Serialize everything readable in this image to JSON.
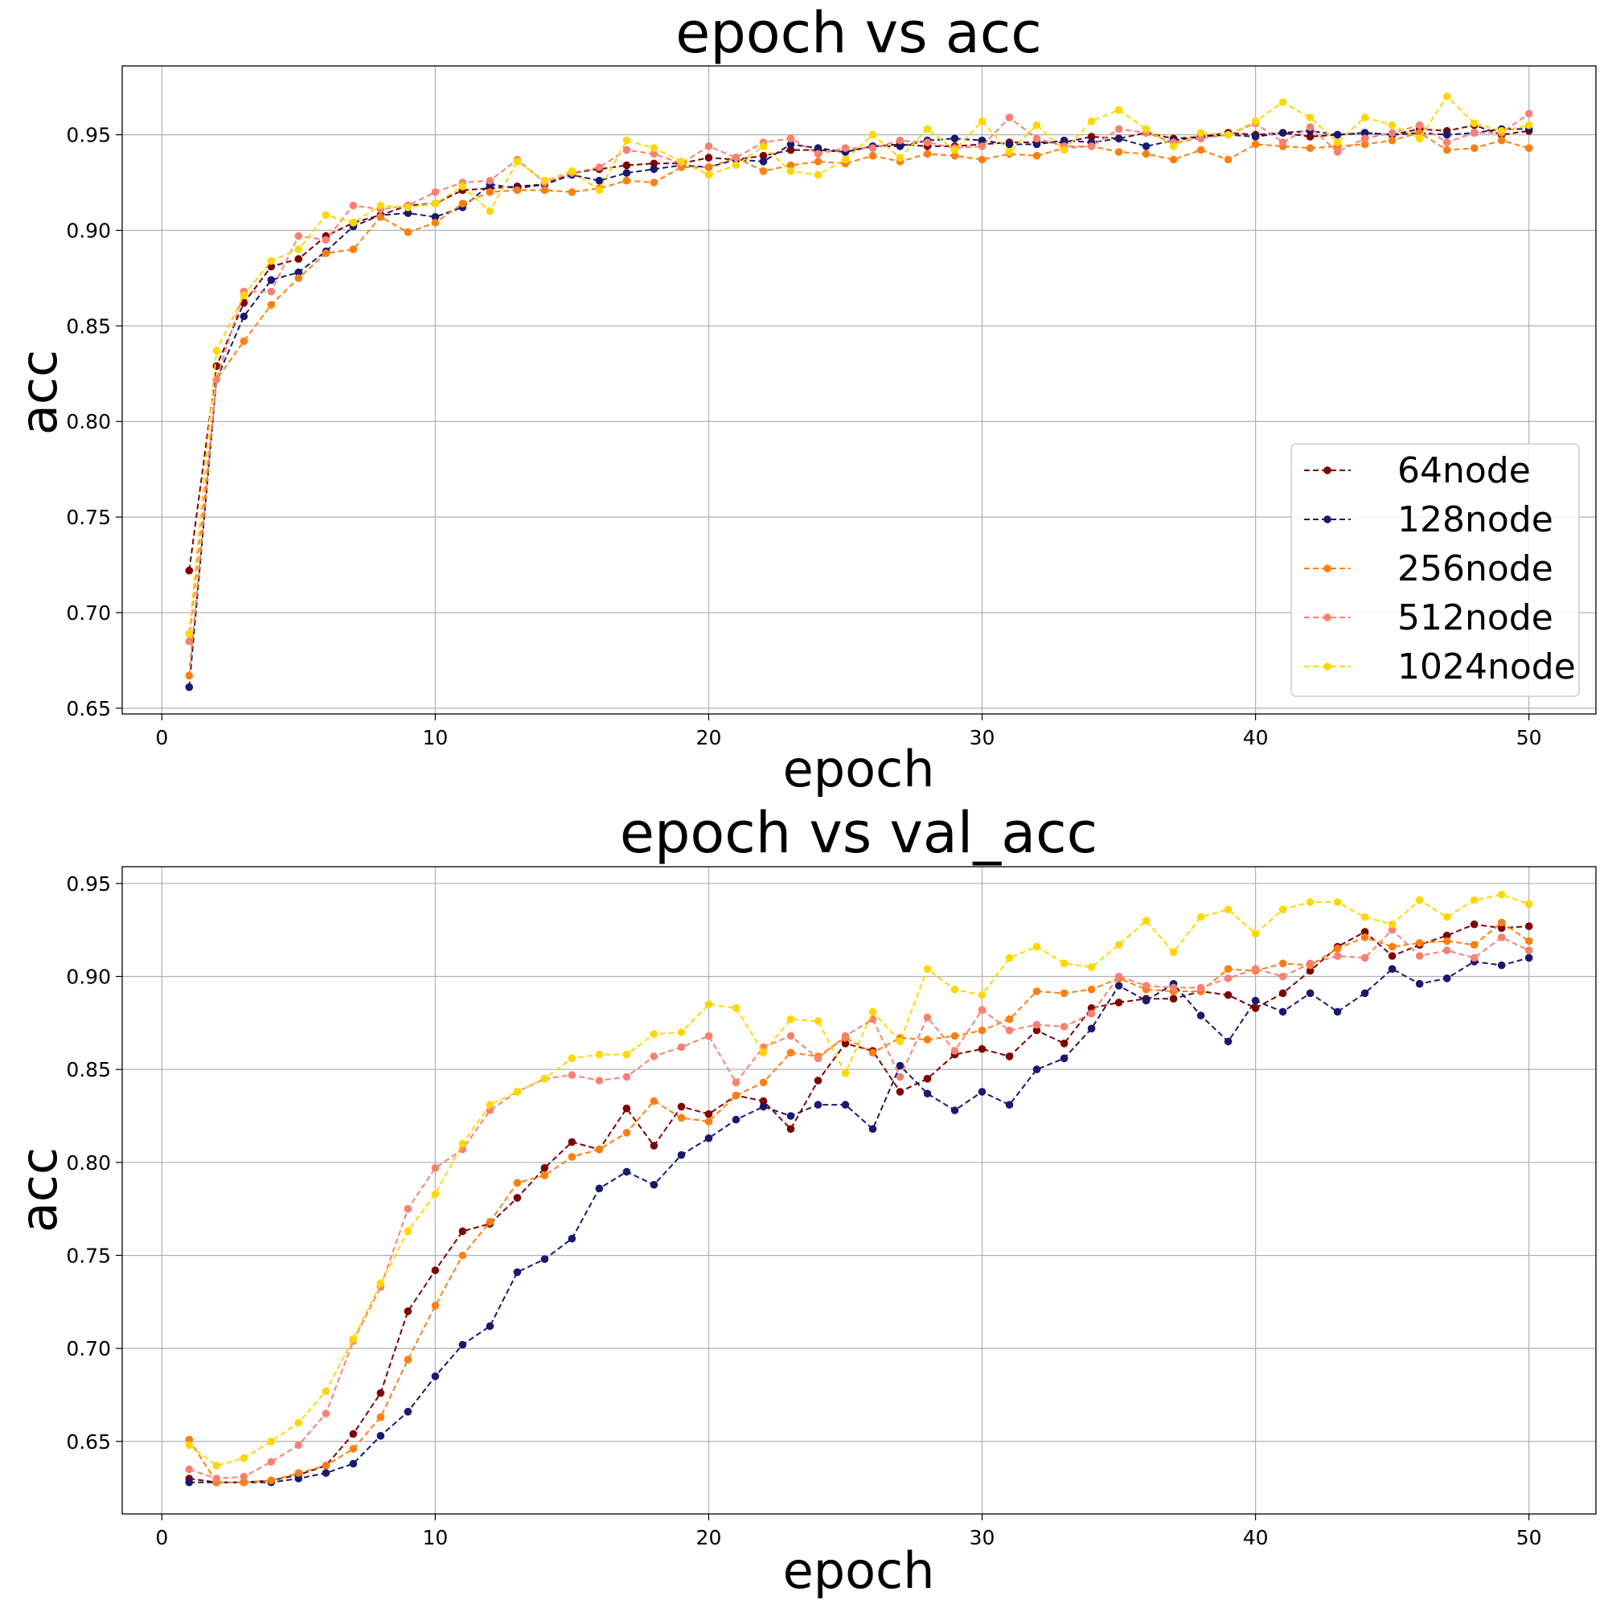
{
  "chart_data": [
    {
      "type": "line",
      "title": "epoch vs acc",
      "xlabel": "epoch",
      "ylabel": "acc",
      "xlim": [
        -1.45,
        52.45
      ],
      "ylim": [
        0.647,
        0.986
      ],
      "xticks": [
        0,
        10,
        20,
        30,
        40,
        50
      ],
      "xtick_labels": [
        "0",
        "10",
        "20",
        "30",
        "40",
        "50"
      ],
      "yticks": [
        0.65,
        0.7,
        0.75,
        0.8,
        0.85,
        0.9,
        0.95
      ],
      "ytick_labels": [
        "0.65",
        "0.70",
        "0.75",
        "0.80",
        "0.85",
        "0.90",
        "0.95"
      ],
      "grid": true,
      "legend": "lower-right",
      "x": [
        1,
        2,
        3,
        4,
        5,
        6,
        7,
        8,
        9,
        10,
        11,
        12,
        13,
        14,
        15,
        16,
        17,
        18,
        19,
        20,
        21,
        22,
        23,
        24,
        25,
        26,
        27,
        28,
        29,
        30,
        31,
        32,
        33,
        34,
        35,
        36,
        37,
        38,
        39,
        40,
        41,
        42,
        43,
        44,
        45,
        46,
        47,
        48,
        49,
        50
      ],
      "series": [
        {
          "name": "64node",
          "color": "#7f0000",
          "values": [
            0.722,
            0.829,
            0.862,
            0.881,
            0.885,
            0.897,
            0.904,
            0.908,
            0.913,
            0.914,
            0.921,
            0.922,
            0.923,
            0.924,
            0.93,
            0.932,
            0.934,
            0.935,
            0.935,
            0.938,
            0.937,
            0.939,
            0.942,
            0.942,
            0.941,
            0.944,
            0.945,
            0.944,
            0.944,
            0.945,
            0.946,
            0.946,
            0.946,
            0.949,
            0.948,
            0.951,
            0.948,
            0.949,
            0.951,
            0.95,
            0.951,
            0.949,
            0.95,
            0.951,
            0.95,
            0.953,
            0.952,
            0.955,
            0.95,
            0.952
          ]
        },
        {
          "name": "128node",
          "color": "#191970",
          "values": [
            0.661,
            0.822,
            0.855,
            0.874,
            0.878,
            0.889,
            0.902,
            0.908,
            0.909,
            0.907,
            0.912,
            0.924,
            0.922,
            0.924,
            0.929,
            0.926,
            0.93,
            0.932,
            0.934,
            0.933,
            0.937,
            0.936,
            0.945,
            0.943,
            0.941,
            0.944,
            0.944,
            0.947,
            0.948,
            0.947,
            0.945,
            0.945,
            0.947,
            0.946,
            0.948,
            0.944,
            0.947,
            0.949,
            0.95,
            0.949,
            0.951,
            0.952,
            0.95,
            0.951,
            0.95,
            0.951,
            0.95,
            0.951,
            0.953,
            0.953
          ]
        },
        {
          "name": "256node",
          "color": "#ff7f0e",
          "values": [
            0.667,
            0.822,
            0.842,
            0.861,
            0.875,
            0.888,
            0.89,
            0.907,
            0.899,
            0.904,
            0.914,
            0.92,
            0.921,
            0.921,
            0.92,
            0.922,
            0.926,
            0.925,
            0.933,
            0.933,
            0.938,
            0.931,
            0.934,
            0.936,
            0.935,
            0.939,
            0.936,
            0.94,
            0.939,
            0.937,
            0.94,
            0.939,
            0.943,
            0.944,
            0.941,
            0.94,
            0.937,
            0.942,
            0.937,
            0.945,
            0.944,
            0.943,
            0.944,
            0.945,
            0.947,
            0.951,
            0.942,
            0.943,
            0.947,
            0.943
          ]
        },
        {
          "name": "512node",
          "color": "#fa8072",
          "values": [
            0.685,
            0.822,
            0.868,
            0.868,
            0.897,
            0.895,
            0.913,
            0.911,
            0.913,
            0.92,
            0.925,
            0.926,
            0.937,
            0.925,
            0.93,
            0.933,
            0.942,
            0.94,
            0.935,
            0.944,
            0.938,
            0.946,
            0.948,
            0.94,
            0.943,
            0.943,
            0.947,
            0.946,
            0.943,
            0.944,
            0.959,
            0.948,
            0.944,
            0.944,
            0.953,
            0.951,
            0.946,
            0.948,
            0.95,
            0.956,
            0.946,
            0.954,
            0.941,
            0.948,
            0.951,
            0.955,
            0.946,
            0.951,
            0.951,
            0.961
          ]
        },
        {
          "name": "1024node",
          "color": "#ffd700",
          "values": [
            0.689,
            0.837,
            0.866,
            0.884,
            0.89,
            0.908,
            0.904,
            0.913,
            0.912,
            0.914,
            0.923,
            0.91,
            0.936,
            0.926,
            0.931,
            0.921,
            0.947,
            0.943,
            0.936,
            0.929,
            0.934,
            0.944,
            0.931,
            0.929,
            0.937,
            0.95,
            0.938,
            0.953,
            0.942,
            0.957,
            0.941,
            0.955,
            0.942,
            0.957,
            0.963,
            0.953,
            0.944,
            0.951,
            0.95,
            0.957,
            0.967,
            0.959,
            0.946,
            0.959,
            0.955,
            0.948,
            0.97,
            0.956,
            0.952,
            0.955
          ]
        }
      ]
    },
    {
      "type": "line",
      "title": "epoch vs val_acc",
      "xlabel": "epoch",
      "ylabel": "acc",
      "xlim": [
        -1.45,
        52.45
      ],
      "ylim": [
        0.611,
        0.959
      ],
      "xticks": [
        0,
        10,
        20,
        30,
        40,
        50
      ],
      "xtick_labels": [
        "0",
        "10",
        "20",
        "30",
        "40",
        "50"
      ],
      "yticks": [
        0.65,
        0.7,
        0.75,
        0.8,
        0.85,
        0.9,
        0.95
      ],
      "ytick_labels": [
        "0.65",
        "0.70",
        "0.75",
        "0.80",
        "0.85",
        "0.90",
        "0.95"
      ],
      "grid": true,
      "x": [
        1,
        2,
        3,
        4,
        5,
        6,
        7,
        8,
        9,
        10,
        11,
        12,
        13,
        14,
        15,
        16,
        17,
        18,
        19,
        20,
        21,
        22,
        23,
        24,
        25,
        26,
        27,
        28,
        29,
        30,
        31,
        32,
        33,
        34,
        35,
        36,
        37,
        38,
        39,
        40,
        41,
        42,
        43,
        44,
        45,
        46,
        47,
        48,
        49,
        50
      ],
      "series": [
        {
          "name": "64node",
          "color": "#7f0000",
          "values": [
            0.63,
            0.628,
            0.628,
            0.629,
            0.632,
            0.637,
            0.654,
            0.676,
            0.72,
            0.742,
            0.763,
            0.767,
            0.781,
            0.797,
            0.811,
            0.807,
            0.829,
            0.809,
            0.83,
            0.826,
            0.836,
            0.833,
            0.818,
            0.844,
            0.864,
            0.86,
            0.838,
            0.845,
            0.858,
            0.861,
            0.857,
            0.871,
            0.864,
            0.883,
            0.886,
            0.888,
            0.888,
            0.892,
            0.89,
            0.883,
            0.891,
            0.903,
            0.916,
            0.924,
            0.911,
            0.917,
            0.922,
            0.928,
            0.926,
            0.927
          ]
        },
        {
          "name": "128node",
          "color": "#191970",
          "values": [
            0.628,
            0.628,
            0.628,
            0.628,
            0.63,
            0.633,
            0.638,
            0.653,
            0.666,
            0.685,
            0.702,
            0.712,
            0.741,
            0.748,
            0.759,
            0.786,
            0.795,
            0.788,
            0.804,
            0.813,
            0.823,
            0.83,
            0.825,
            0.831,
            0.831,
            0.818,
            0.852,
            0.837,
            0.828,
            0.838,
            0.831,
            0.85,
            0.856,
            0.872,
            0.895,
            0.887,
            0.896,
            0.879,
            0.865,
            0.887,
            0.881,
            0.891,
            0.881,
            0.891,
            0.904,
            0.896,
            0.899,
            0.908,
            0.906,
            0.91
          ]
        },
        {
          "name": "256node",
          "color": "#ff7f0e",
          "values": [
            0.651,
            0.628,
            0.628,
            0.629,
            0.633,
            0.637,
            0.646,
            0.663,
            0.694,
            0.723,
            0.75,
            0.768,
            0.789,
            0.793,
            0.803,
            0.807,
            0.816,
            0.833,
            0.824,
            0.822,
            0.836,
            0.843,
            0.859,
            0.857,
            0.867,
            0.859,
            0.867,
            0.866,
            0.868,
            0.871,
            0.877,
            0.892,
            0.891,
            0.893,
            0.899,
            0.893,
            0.892,
            0.892,
            0.904,
            0.903,
            0.907,
            0.906,
            0.915,
            0.921,
            0.916,
            0.918,
            0.919,
            0.917,
            0.929,
            0.919
          ]
        },
        {
          "name": "512node",
          "color": "#fa8072",
          "values": [
            0.635,
            0.63,
            0.631,
            0.639,
            0.648,
            0.665,
            0.704,
            0.733,
            0.775,
            0.797,
            0.807,
            0.828,
            0.838,
            0.845,
            0.847,
            0.844,
            0.846,
            0.857,
            0.862,
            0.868,
            0.843,
            0.862,
            0.868,
            0.856,
            0.868,
            0.877,
            0.846,
            0.878,
            0.86,
            0.882,
            0.871,
            0.874,
            0.873,
            0.88,
            0.9,
            0.895,
            0.894,
            0.894,
            0.899,
            0.904,
            0.9,
            0.907,
            0.911,
            0.91,
            0.925,
            0.911,
            0.914,
            0.91,
            0.921,
            0.914
          ]
        },
        {
          "name": "1024node",
          "color": "#ffd700",
          "values": [
            0.648,
            0.637,
            0.641,
            0.65,
            0.66,
            0.677,
            0.705,
            0.735,
            0.763,
            0.783,
            0.81,
            0.831,
            0.838,
            0.845,
            0.856,
            0.858,
            0.858,
            0.869,
            0.87,
            0.885,
            0.883,
            0.859,
            0.877,
            0.876,
            0.848,
            0.881,
            0.865,
            0.904,
            0.893,
            0.89,
            0.91,
            0.916,
            0.907,
            0.905,
            0.917,
            0.93,
            0.913,
            0.932,
            0.936,
            0.923,
            0.936,
            0.94,
            0.94,
            0.932,
            0.928,
            0.941,
            0.932,
            0.941,
            0.944,
            0.939
          ]
        }
      ]
    }
  ]
}
